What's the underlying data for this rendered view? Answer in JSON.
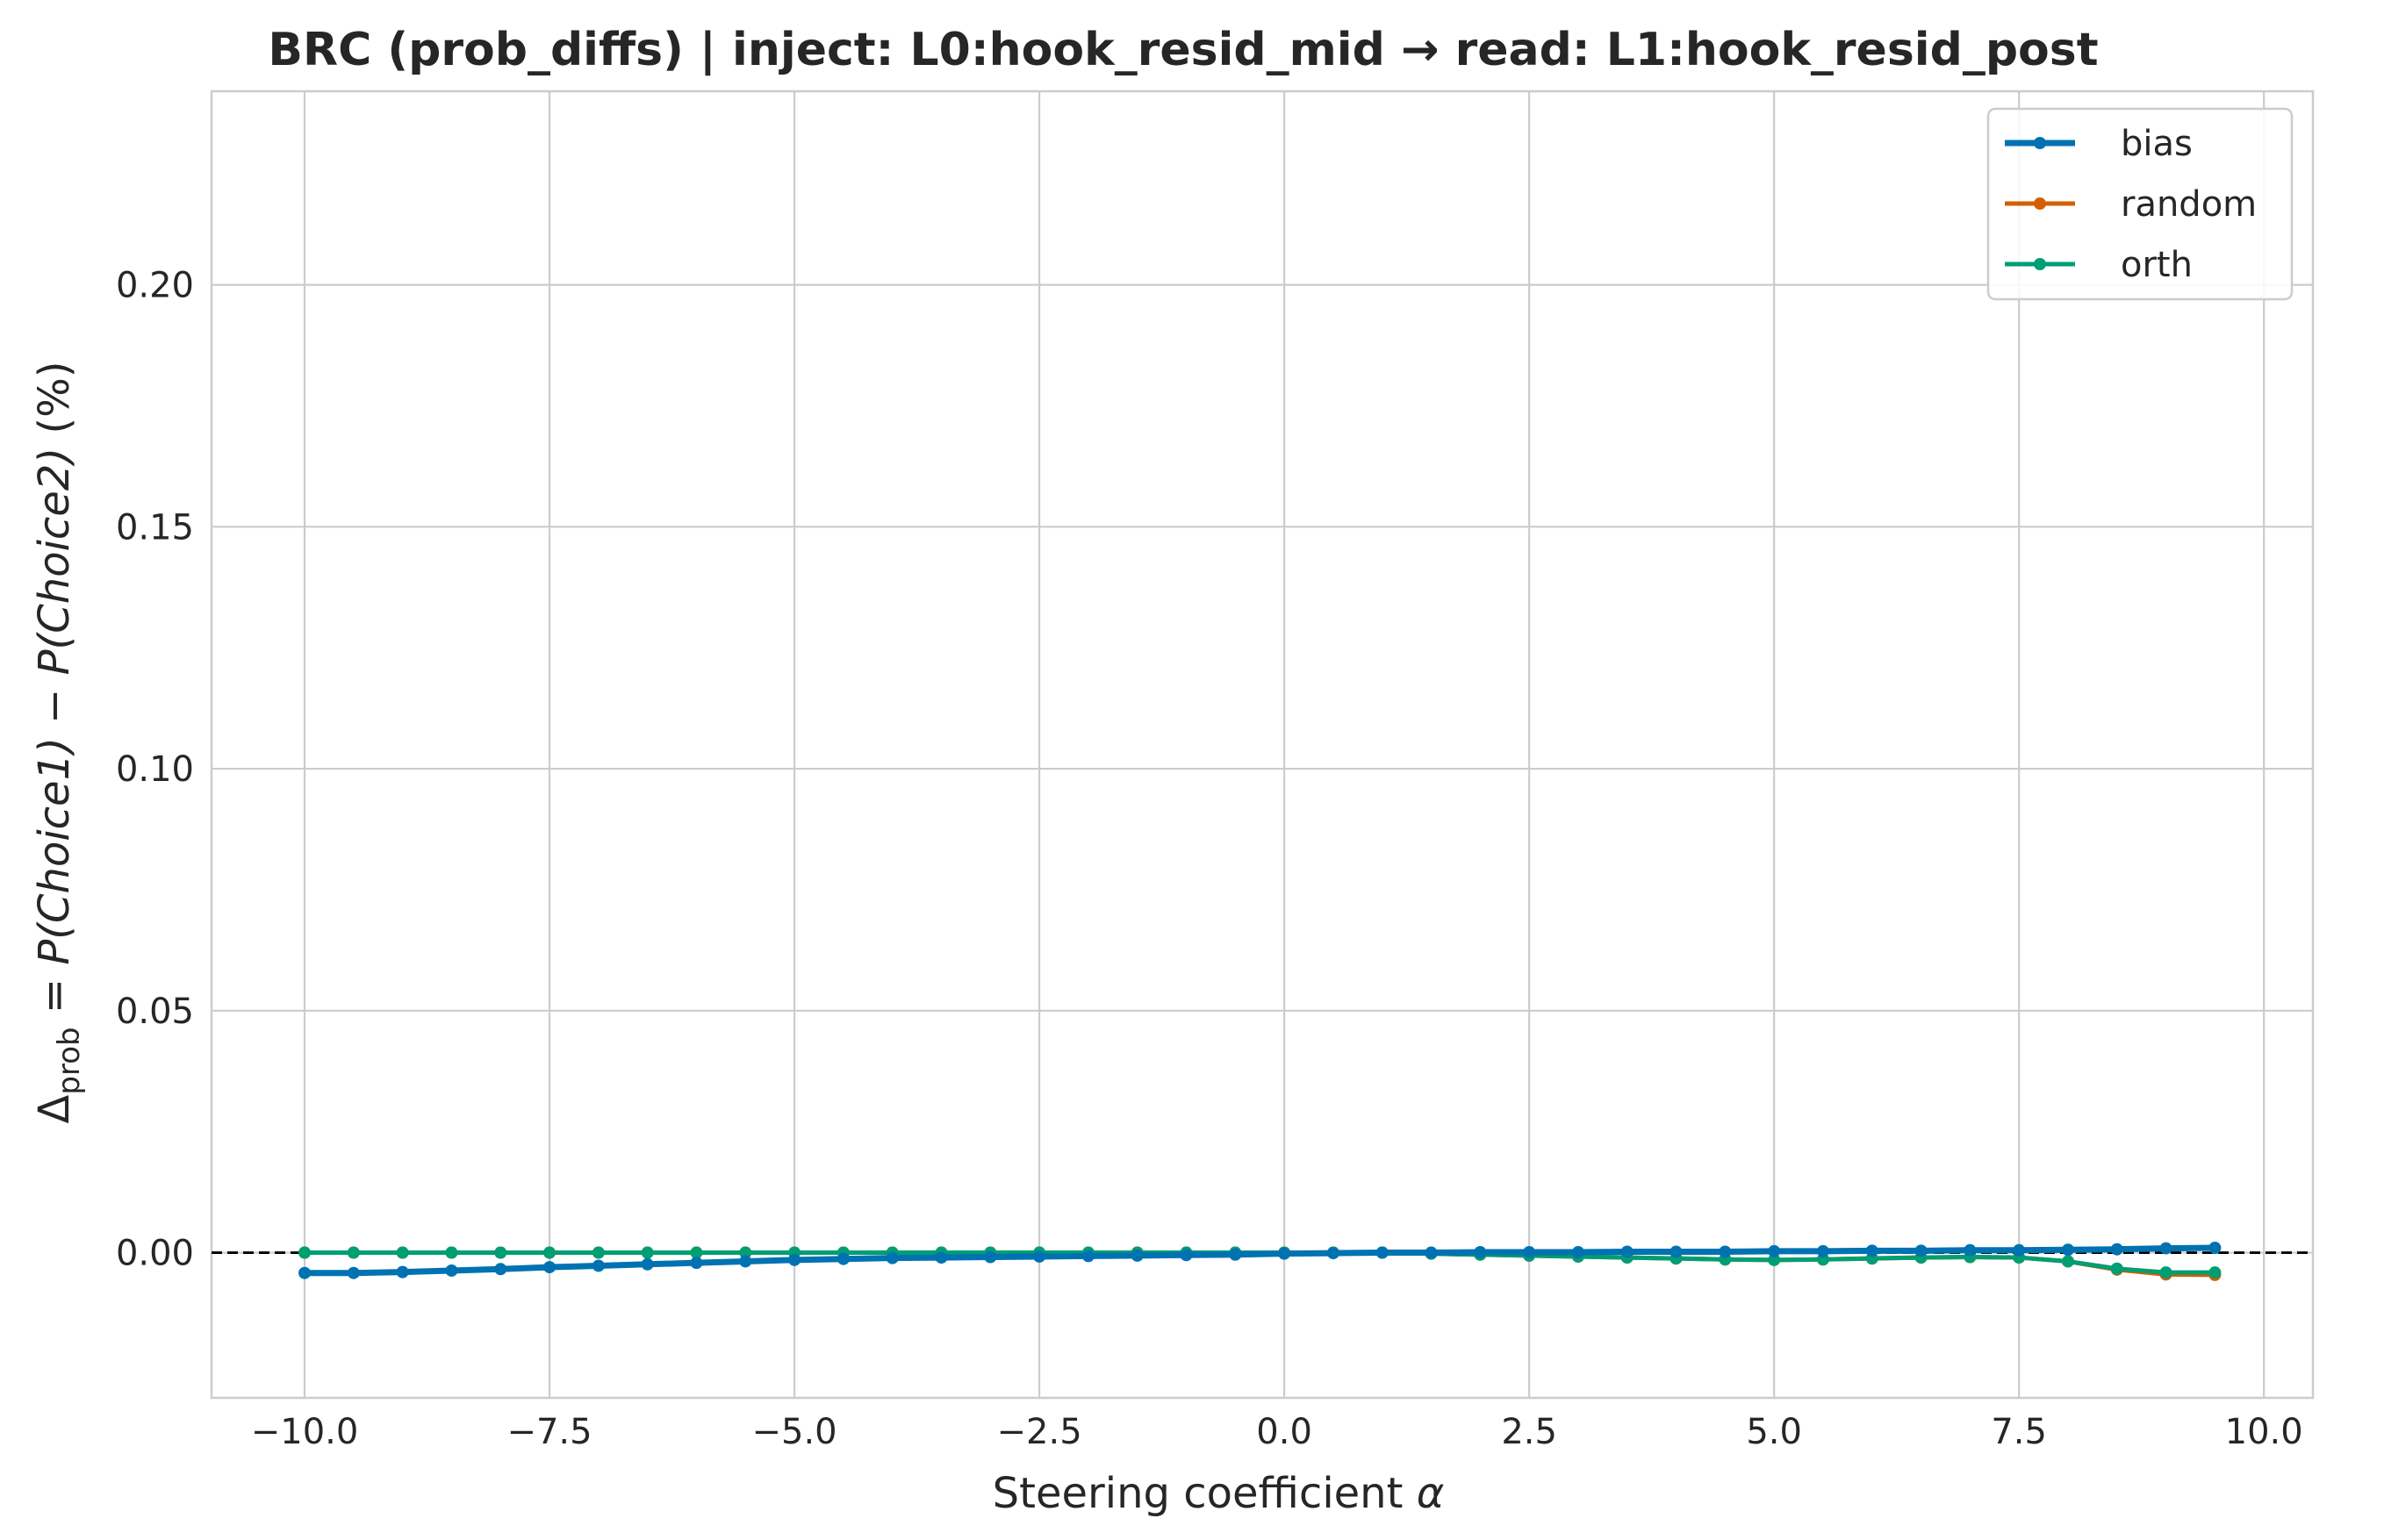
{
  "chart_data": {
    "type": "line",
    "title": "BRC (prob_diffs) | inject: L0:hook_resid_mid → read: L1:hook_resid_post",
    "xlabel_prefix": "Steering coefficient ",
    "xlabel_symbol": "α",
    "ylabel": {
      "delta": "Δ",
      "subscript": "prob",
      "eq": " = ",
      "p1": "P",
      "c1": "(Choice1)",
      "minus": " − ",
      "p2": "P",
      "c2": "(Choice2)",
      "unit": " (%)"
    },
    "xlim": [
      -10.95,
      10.5
    ],
    "ylim": [
      -0.03,
      0.24
    ],
    "xticks": [
      -10.0,
      -7.5,
      -5.0,
      -2.5,
      0.0,
      2.5,
      5.0,
      7.5,
      10.0
    ],
    "xtick_labels": [
      "−10.0",
      "−7.5",
      "−5.0",
      "−2.5",
      "0.0",
      "2.5",
      "5.0",
      "7.5",
      "10.0"
    ],
    "yticks": [
      0.0,
      0.05,
      0.1,
      0.15,
      0.2
    ],
    "ytick_labels": [
      "0.00",
      "0.05",
      "0.10",
      "0.15",
      "0.20"
    ],
    "grid": true,
    "legend_position": "upper right",
    "reference_line": {
      "y": 0,
      "style": "dashed",
      "color": "#000000"
    },
    "x": [
      -10.0,
      -9.5,
      -9.0,
      -8.5,
      -8.0,
      -7.5,
      -7.0,
      -6.5,
      -6.0,
      -5.5,
      -5.0,
      -4.5,
      -4.0,
      -3.5,
      -3.0,
      -2.5,
      -2.0,
      -1.5,
      -1.0,
      -0.5,
      0.0,
      0.5,
      1.0,
      1.5,
      2.0,
      2.5,
      3.0,
      3.5,
      4.0,
      4.5,
      5.0,
      5.5,
      6.0,
      6.5,
      7.0,
      7.5,
      8.0,
      8.5,
      9.0,
      9.5
    ],
    "series": [
      {
        "name": "bias",
        "color": "#0072b2",
        "values": [
          -0.0042,
          -0.0042,
          -0.004,
          -0.0037,
          -0.0034,
          -0.003,
          -0.0027,
          -0.0024,
          -0.0021,
          -0.0018,
          -0.0015,
          -0.0013,
          -0.0011,
          -0.001,
          -0.0009,
          -0.0008,
          -0.0007,
          -0.0006,
          -0.0005,
          -0.0004,
          -0.0002,
          -0.0001,
          0.0,
          0.0,
          0.0001,
          0.0001,
          0.0001,
          0.0002,
          0.0002,
          0.0002,
          0.0003,
          0.0003,
          0.0004,
          0.0004,
          0.0005,
          0.0005,
          0.0006,
          0.0007,
          0.0009,
          0.001
        ]
      },
      {
        "name": "random",
        "color": "#d55e00",
        "values": [
          0.0,
          0.0,
          0.0,
          0.0,
          0.0,
          0.0,
          0.0,
          0.0,
          0.0,
          0.0,
          0.0,
          0.0,
          0.0,
          0.0,
          0.0,
          0.0,
          0.0,
          0.0,
          0.0,
          0.0,
          0.0,
          0.0,
          0.0,
          -0.0002,
          -0.0004,
          -0.0006,
          -0.0008,
          -0.001,
          -0.0012,
          -0.0014,
          -0.0015,
          -0.0014,
          -0.0012,
          -0.001,
          -0.0009,
          -0.001,
          -0.0018,
          -0.0035,
          -0.0045,
          -0.0046
        ]
      },
      {
        "name": "orth",
        "color": "#009e73",
        "values": [
          0.0,
          0.0,
          0.0,
          0.0,
          0.0,
          0.0,
          0.0,
          0.0,
          0.0,
          0.0,
          0.0,
          0.0,
          0.0,
          0.0,
          0.0,
          0.0,
          0.0,
          0.0,
          0.0,
          0.0,
          0.0,
          0.0,
          0.0,
          -0.0002,
          -0.0004,
          -0.0006,
          -0.0008,
          -0.001,
          -0.0012,
          -0.0014,
          -0.0015,
          -0.0014,
          -0.0012,
          -0.001,
          -0.0009,
          -0.001,
          -0.0018,
          -0.0033,
          -0.0041,
          -0.0041
        ]
      }
    ]
  }
}
